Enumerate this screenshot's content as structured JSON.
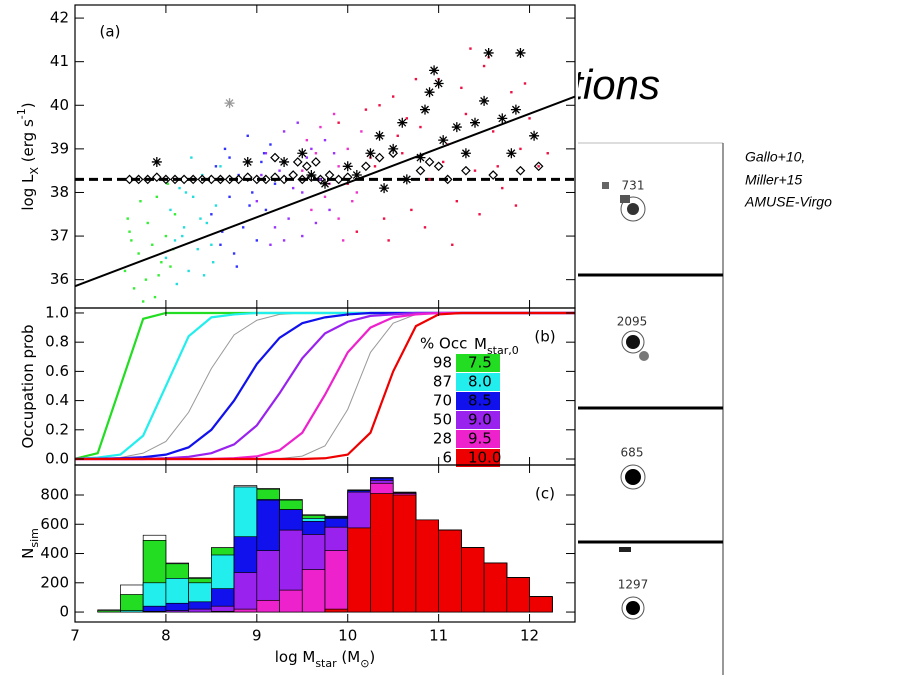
{
  "slide": {
    "title_fragment": "ations",
    "caption": [
      "Gallo+10,",
      "Miller+15",
      "AMUSE-Virgo"
    ],
    "stamps": [
      "731",
      "2095",
      "685",
      "1297"
    ]
  },
  "chart_data": [
    {
      "type": "scatter",
      "panel_label": "(a)",
      "ylabel": [
        "log L",
        "X",
        " (erg s",
        "-1",
        ")"
      ],
      "xlim": [
        7,
        12.5
      ],
      "ylim": [
        35.35,
        42.3
      ],
      "yticks": [
        36,
        37,
        38,
        39,
        40,
        41,
        42
      ],
      "reference_line_y": 38.3,
      "fit_line": {
        "x": [
          7,
          12.5
        ],
        "values": [
          35.85,
          40.2
        ]
      },
      "series": [
        {
          "marker": "dot",
          "color": "#33ee33",
          "x": [
            7.55,
            7.6,
            7.65,
            7.7,
            7.72,
            7.78,
            7.8,
            7.85,
            7.88,
            7.9,
            7.95,
            8.0,
            8.02,
            8.05,
            8.1,
            7.62,
            7.75,
            7.92,
            7.58,
            8.08
          ],
          "values": [
            36.2,
            37.1,
            35.8,
            36.6,
            37.8,
            36.0,
            37.3,
            36.8,
            35.6,
            37.9,
            36.4,
            37.0,
            38.2,
            36.3,
            37.5,
            36.9,
            35.5,
            36.1,
            37.4,
            36.7
          ]
        },
        {
          "marker": "dot",
          "color": "#22dddd",
          "x": [
            8.0,
            8.05,
            8.1,
            8.15,
            8.2,
            8.25,
            8.3,
            8.35,
            8.4,
            8.45,
            8.5,
            8.55,
            8.6,
            8.12,
            8.28,
            8.42,
            8.18,
            8.38,
            8.52,
            8.22
          ],
          "values": [
            36.5,
            37.6,
            36.9,
            38.1,
            37.2,
            36.2,
            37.9,
            36.7,
            38.4,
            37.3,
            36.8,
            37.7,
            38.6,
            35.9,
            38.8,
            36.1,
            37.0,
            37.4,
            36.4,
            38.0
          ]
        },
        {
          "marker": "dot",
          "color": "#3333ff",
          "x": [
            8.5,
            8.55,
            8.6,
            8.65,
            8.7,
            8.75,
            8.8,
            8.85,
            8.9,
            8.95,
            9.0,
            9.05,
            9.1,
            9.15,
            9.2,
            8.62,
            8.78,
            8.92,
            9.08,
            8.7
          ],
          "values": [
            37.5,
            38.6,
            36.8,
            39.0,
            37.9,
            36.6,
            38.4,
            37.2,
            39.3,
            38.0,
            36.9,
            38.7,
            37.6,
            39.1,
            38.2,
            37.1,
            36.3,
            37.7,
            38.9,
            38.8
          ]
        },
        {
          "marker": "dot",
          "color": "#9933ff",
          "x": [
            9.0,
            9.1,
            9.2,
            9.3,
            9.4,
            9.5,
            9.6,
            9.7,
            9.8,
            9.15,
            9.25,
            9.35,
            9.45,
            9.55,
            9.65,
            9.75,
            9.05,
            9.5,
            9.85,
            9.3
          ],
          "values": [
            37.8,
            38.9,
            37.2,
            39.4,
            38.1,
            37.0,
            39.0,
            38.3,
            37.6,
            36.8,
            38.5,
            37.4,
            39.6,
            38.8,
            37.3,
            39.2,
            38.4,
            38.0,
            38.9,
            36.9
          ]
        },
        {
          "marker": "dot",
          "color": "#ee33cc",
          "x": [
            9.5,
            9.6,
            9.7,
            9.8,
            9.9,
            10.0,
            10.1,
            9.65,
            9.85,
            9.95,
            10.05,
            9.55,
            9.75,
            9.9,
            10.15
          ],
          "values": [
            38.5,
            37.6,
            39.5,
            38.2,
            37.4,
            39.0,
            38.0,
            38.9,
            39.8,
            36.9,
            37.8,
            39.2,
            37.9,
            38.6,
            39.4
          ]
        },
        {
          "marker": "dot",
          "color": "#ee1144",
          "x": [
            9.9,
            10.0,
            10.1,
            10.2,
            10.3,
            10.4,
            10.5,
            10.6,
            10.7,
            10.8,
            10.9,
            11.0,
            11.1,
            11.2,
            11.3,
            11.4,
            11.5,
            11.6,
            11.7,
            11.8,
            11.9,
            12.0,
            12.1,
            10.25,
            10.45,
            10.65,
            10.85,
            11.05,
            11.25,
            11.45,
            11.65,
            11.85,
            10.35,
            10.75,
            11.15,
            11.55,
            11.95,
            12.2,
            10.55,
            11.35
          ],
          "values": [
            39.6,
            38.2,
            37.1,
            39.9,
            38.6,
            37.4,
            40.2,
            38.9,
            37.6,
            39.5,
            38.3,
            40.6,
            39.1,
            37.8,
            39.8,
            38.5,
            40.9,
            39.4,
            38.1,
            40.3,
            39.0,
            39.7,
            38.6,
            38.8,
            36.9,
            39.7,
            37.2,
            38.7,
            40.4,
            37.5,
            38.6,
            37.7,
            40.0,
            40.6,
            36.8,
            41.1,
            40.5,
            38.9,
            39.3,
            41.3
          ]
        },
        {
          "marker": "diamond",
          "color": "#000000",
          "x": [
            7.6,
            7.7,
            7.8,
            7.9,
            8.0,
            8.1,
            8.2,
            8.3,
            8.4,
            8.5,
            8.6,
            8.7,
            8.8,
            8.9,
            9.0,
            9.1,
            9.2,
            9.3,
            9.4,
            9.5,
            9.6,
            9.7,
            9.8,
            9.9,
            10.0,
            9.45,
            9.55,
            9.65,
            10.2,
            10.35,
            10.5,
            10.8,
            11.0,
            11.3,
            11.6,
            11.9,
            12.1,
            11.1,
            10.9,
            9.2
          ],
          "values": [
            38.3,
            38.3,
            38.3,
            38.35,
            38.3,
            38.3,
            38.3,
            38.3,
            38.3,
            38.3,
            38.3,
            38.3,
            38.3,
            38.35,
            38.3,
            38.3,
            38.35,
            38.3,
            38.4,
            38.3,
            38.35,
            38.3,
            38.4,
            38.3,
            38.35,
            38.7,
            38.6,
            38.7,
            38.6,
            38.8,
            38.9,
            38.5,
            38.6,
            38.5,
            38.4,
            38.5,
            38.6,
            38.3,
            38.7,
            38.8
          ]
        },
        {
          "marker": "asterisk",
          "color": "#000000",
          "x": [
            7.9,
            8.9,
            9.3,
            9.5,
            9.75,
            10.0,
            10.1,
            10.25,
            10.35,
            10.5,
            10.6,
            10.65,
            10.8,
            10.85,
            10.9,
            10.95,
            11.0,
            11.05,
            11.2,
            11.3,
            11.4,
            11.55,
            11.7,
            11.8,
            11.85,
            11.9,
            12.05,
            11.5,
            10.4,
            9.6
          ],
          "values": [
            38.7,
            38.7,
            38.7,
            38.9,
            38.2,
            38.6,
            38.4,
            38.9,
            39.3,
            39.0,
            39.6,
            38.3,
            38.8,
            39.9,
            40.3,
            40.8,
            40.5,
            39.2,
            39.5,
            38.9,
            39.6,
            41.2,
            39.7,
            38.9,
            39.9,
            41.2,
            39.3,
            40.1,
            38.1,
            38.4
          ]
        },
        {
          "marker": "asterisk",
          "color": "#999999",
          "x": [
            8.7
          ],
          "values": [
            40.05
          ]
        }
      ]
    },
    {
      "type": "line",
      "panel_label": "(b)",
      "ylabel": [
        "Occupation prob"
      ],
      "xlim": [
        7,
        12.5
      ],
      "ylim": [
        -0.041,
        1.034
      ],
      "yticks": [
        {
          "value": 0,
          "label": "0.0"
        },
        0.2,
        0.4,
        0.6,
        0.8,
        {
          "value": 1,
          "label": "1.0"
        }
      ],
      "legend_title": "% Occ",
      "legend_mass_title": [
        "M",
        "star,0"
      ],
      "x": [
        7,
        7.25,
        7.5,
        7.75,
        8,
        8.25,
        8.5,
        8.75,
        9,
        9.25,
        9.5,
        9.75,
        10,
        10.25,
        10.5,
        10.75,
        11,
        11.25,
        11.5,
        11.75,
        12,
        12.25,
        12.5
      ],
      "series": [
        {
          "color": "#999999",
          "values": [
            0,
            0,
            0.01,
            0.04,
            0.12,
            0.32,
            0.62,
            0.85,
            0.95,
            0.99,
            1,
            1,
            1,
            1,
            1,
            1,
            1,
            1,
            1,
            1,
            1,
            1,
            1
          ]
        },
        {
          "color": "#999999",
          "values": [
            0,
            0,
            0,
            0,
            0,
            0,
            0,
            0,
            0,
            0.003,
            0.02,
            0.09,
            0.34,
            0.73,
            0.93,
            0.99,
            1,
            1,
            1,
            1,
            1,
            1,
            1
          ]
        },
        {
          "name": "7.5",
          "occupancy": 98,
          "color": "#22dd22",
          "values": [
            0.002,
            0.04,
            0.5,
            0.96,
            1,
            1,
            1,
            1,
            1,
            1,
            1,
            1,
            1,
            1,
            1,
            1,
            1,
            1,
            1,
            1,
            1,
            1,
            1
          ]
        },
        {
          "name": "8.0",
          "occupancy": 87,
          "color": "#22eeee",
          "values": [
            0.001,
            0.01,
            0.03,
            0.16,
            0.5,
            0.84,
            0.97,
            0.99,
            1,
            1,
            1,
            1,
            1,
            1,
            1,
            1,
            1,
            1,
            1,
            1,
            1,
            1,
            1
          ]
        },
        {
          "name": "8.5",
          "occupancy": 70,
          "color": "#1111ee",
          "values": [
            0.001,
            0.002,
            0.005,
            0.012,
            0.03,
            0.08,
            0.2,
            0.4,
            0.65,
            0.83,
            0.93,
            0.97,
            0.99,
            1,
            1,
            1,
            1,
            1,
            1,
            1,
            1,
            1,
            1
          ]
        },
        {
          "name": "9.0",
          "occupancy": 50,
          "color": "#9922ee",
          "values": [
            0,
            0,
            0,
            0,
            0.005,
            0.015,
            0.04,
            0.1,
            0.23,
            0.45,
            0.69,
            0.86,
            0.94,
            0.98,
            0.99,
            1,
            1,
            1,
            1,
            1,
            1,
            1,
            1
          ]
        },
        {
          "name": "9.5",
          "occupancy": 28,
          "color": "#ee22cc",
          "values": [
            0,
            0,
            0,
            0,
            0,
            0,
            0,
            0.005,
            0.018,
            0.06,
            0.18,
            0.44,
            0.73,
            0.9,
            0.97,
            0.99,
            1,
            1,
            1,
            1,
            1,
            1,
            1
          ]
        },
        {
          "name": "10.0",
          "occupancy": 6,
          "color": "#ee0000",
          "values": [
            0,
            0,
            0,
            0,
            0,
            0,
            0,
            0,
            0,
            0,
            0,
            0.005,
            0.03,
            0.18,
            0.6,
            0.91,
            0.99,
            1,
            1,
            1,
            1,
            1,
            1
          ]
        }
      ]
    },
    {
      "type": "histogram",
      "panel_label": "(c)",
      "ylabel": [
        "N",
        "sim"
      ],
      "xlabel": [
        "log M",
        "star",
        " (M",
        "⊙",
        ")"
      ],
      "xlim": [
        7,
        12.5
      ],
      "xticks": [
        7,
        8,
        9,
        10,
        11,
        12
      ],
      "ylim": [
        -68,
        1005
      ],
      "yticks": [
        0,
        200,
        400,
        600,
        800
      ],
      "bins": [
        7.25,
        7.5,
        7.75,
        8,
        8.25,
        8.5,
        8.75,
        9,
        9.25,
        9.5,
        9.75,
        10,
        10.25,
        10.5,
        10.75,
        11,
        11.25,
        11.5,
        11.75,
        12,
        12.25
      ],
      "series": [
        {
          "color": "#ffffff",
          "values": [
            15,
            185,
            525,
            335,
            235,
            440,
            865,
            845,
            770,
            665,
            655,
            835,
            920,
            820,
            630,
            560,
            440,
            335,
            235,
            105
          ]
        },
        {
          "color": "#22dd22",
          "values": [
            10,
            120,
            490,
            330,
            230,
            440,
            855,
            840,
            765,
            660,
            650,
            835,
            915,
            815,
            630,
            560,
            440,
            335,
            235,
            105
          ]
        },
        {
          "color": "#22eeee",
          "values": [
            0,
            10,
            200,
            230,
            200,
            390,
            855,
            770,
            700,
            640,
            645,
            830,
            915,
            815,
            630,
            560,
            440,
            335,
            235,
            105
          ]
        },
        {
          "color": "#1111ee",
          "values": [
            0,
            0,
            40,
            60,
            70,
            160,
            515,
            765,
            700,
            620,
            640,
            830,
            915,
            815,
            630,
            560,
            440,
            335,
            235,
            105
          ]
        },
        {
          "color": "#9922ee",
          "values": [
            0,
            0,
            5,
            10,
            20,
            40,
            270,
            420,
            560,
            530,
            580,
            820,
            900,
            815,
            630,
            560,
            440,
            335,
            235,
            105
          ]
        },
        {
          "color": "#ee22cc",
          "values": [
            0,
            0,
            0,
            0,
            0,
            5,
            20,
            80,
            150,
            290,
            420,
            560,
            880,
            810,
            630,
            560,
            440,
            335,
            235,
            105
          ]
        },
        {
          "color": "#ee0000",
          "values": [
            0,
            0,
            0,
            0,
            0,
            0,
            0,
            0,
            0,
            0,
            20,
            575,
            810,
            800,
            630,
            560,
            440,
            335,
            235,
            105
          ]
        }
      ]
    }
  ]
}
